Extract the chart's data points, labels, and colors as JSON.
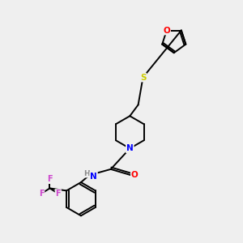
{
  "bg_color": "#efefef",
  "atom_colors": {
    "O": "#ff0000",
    "S": "#cccc00",
    "N": "#0000ff",
    "H": "#888888",
    "C": "#000000",
    "F": "#cc44cc"
  },
  "bond_color": "#000000",
  "bond_width": 1.4
}
